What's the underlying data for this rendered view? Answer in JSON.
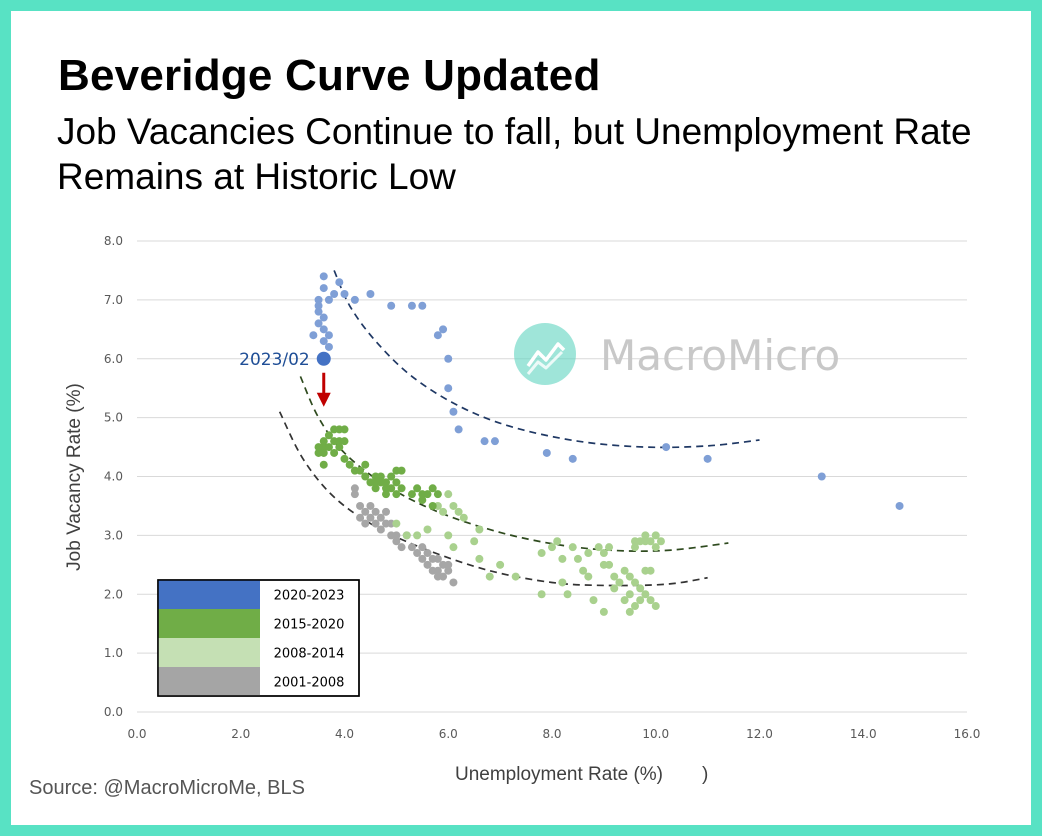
{
  "header": {
    "title": "Beveridge Curve Updated",
    "subtitle": "Job Vacancies Continue to fall, but Unemployment Rate Remains at Historic Low"
  },
  "source": "Source: @MacroMicroMe, BLS",
  "watermark": {
    "text": "MacroMicro",
    "color": "#5fd3c0"
  },
  "colors": {
    "frame": "#58e2c4",
    "grid": "#d9d9d9",
    "arrow": "#c00000",
    "trend": "#1f3864"
  },
  "chart_data": {
    "type": "scatter",
    "xlabel": "Unemployment Rate (%)",
    "xlabel_suffix": ")",
    "ylabel": "Job Vacancy Rate (%)",
    "xlim": [
      0,
      16
    ],
    "ylim": [
      0,
      8
    ],
    "xticks": [
      "0.0",
      "2.0",
      "4.0",
      "6.0",
      "8.0",
      "10.0",
      "12.0",
      "14.0",
      "16.0"
    ],
    "yticks": [
      "0.0",
      "1.0",
      "2.0",
      "3.0",
      "4.0",
      "5.0",
      "6.0",
      "7.0",
      "8.0"
    ],
    "grid": "horizontal",
    "legend_position": "bottom-left",
    "series": [
      {
        "name": "2020-2023",
        "color": "#7f9fd6",
        "points": [
          [
            3.6,
            7.4
          ],
          [
            3.5,
            6.8
          ],
          [
            3.6,
            7.2
          ],
          [
            3.8,
            7.1
          ],
          [
            3.9,
            7.3
          ],
          [
            4.0,
            7.1
          ],
          [
            3.5,
            7.0
          ],
          [
            3.7,
            7.0
          ],
          [
            4.2,
            7.0
          ],
          [
            4.5,
            7.1
          ],
          [
            4.9,
            6.9
          ],
          [
            5.3,
            6.9
          ],
          [
            5.5,
            6.9
          ],
          [
            3.5,
            6.9
          ],
          [
            3.6,
            6.7
          ],
          [
            3.5,
            6.6
          ],
          [
            3.6,
            6.5
          ],
          [
            3.7,
            6.4
          ],
          [
            3.4,
            6.4
          ],
          [
            3.6,
            6.3
          ],
          [
            3.7,
            6.2
          ],
          [
            5.8,
            6.4
          ],
          [
            5.9,
            6.5
          ],
          [
            6.0,
            6.0
          ],
          [
            6.0,
            5.5
          ],
          [
            6.1,
            5.1
          ],
          [
            6.2,
            4.8
          ],
          [
            6.7,
            4.6
          ],
          [
            6.9,
            4.6
          ],
          [
            7.9,
            4.4
          ],
          [
            8.4,
            4.3
          ],
          [
            10.2,
            4.5
          ],
          [
            11.0,
            4.3
          ],
          [
            13.2,
            4.0
          ],
          [
            14.7,
            3.5
          ]
        ]
      },
      {
        "name": "2015-2020",
        "color": "#70ad47",
        "points": [
          [
            3.5,
            4.4
          ],
          [
            3.6,
            4.5
          ],
          [
            3.6,
            4.6
          ],
          [
            3.7,
            4.5
          ],
          [
            3.7,
            4.7
          ],
          [
            3.8,
            4.6
          ],
          [
            3.8,
            4.8
          ],
          [
            3.9,
            4.8
          ],
          [
            3.9,
            4.6
          ],
          [
            4.0,
            4.8
          ],
          [
            4.0,
            4.6
          ],
          [
            3.6,
            4.2
          ],
          [
            3.6,
            4.4
          ],
          [
            3.5,
            4.5
          ],
          [
            3.8,
            4.4
          ],
          [
            3.9,
            4.5
          ],
          [
            4.0,
            4.3
          ],
          [
            4.1,
            4.2
          ],
          [
            4.2,
            4.1
          ],
          [
            4.3,
            4.1
          ],
          [
            4.4,
            4.0
          ],
          [
            4.4,
            4.2
          ],
          [
            4.5,
            3.9
          ],
          [
            4.6,
            4.0
          ],
          [
            4.6,
            3.8
          ],
          [
            4.7,
            4.0
          ],
          [
            4.7,
            3.9
          ],
          [
            4.8,
            3.7
          ],
          [
            4.8,
            3.9
          ],
          [
            4.9,
            3.8
          ],
          [
            4.9,
            4.0
          ],
          [
            5.0,
            3.9
          ],
          [
            5.0,
            4.1
          ],
          [
            5.1,
            3.8
          ],
          [
            5.1,
            4.1
          ],
          [
            5.0,
            3.7
          ],
          [
            4.8,
            3.8
          ],
          [
            4.6,
            3.9
          ],
          [
            5.3,
            3.7
          ],
          [
            5.4,
            3.8
          ],
          [
            5.5,
            3.6
          ],
          [
            5.6,
            3.7
          ],
          [
            5.7,
            3.8
          ],
          [
            5.8,
            3.7
          ],
          [
            5.7,
            3.5
          ],
          [
            5.5,
            3.7
          ]
        ]
      },
      {
        "name": "2008-2014",
        "color": "#a9d18e",
        "points": [
          [
            5.0,
            3.2
          ],
          [
            5.2,
            3.0
          ],
          [
            5.4,
            3.0
          ],
          [
            5.6,
            3.1
          ],
          [
            5.8,
            3.5
          ],
          [
            5.9,
            3.4
          ],
          [
            6.0,
            3.7
          ],
          [
            6.1,
            3.5
          ],
          [
            6.2,
            3.4
          ],
          [
            6.0,
            3.0
          ],
          [
            6.1,
            2.8
          ],
          [
            6.3,
            3.3
          ],
          [
            6.5,
            2.9
          ],
          [
            6.6,
            3.1
          ],
          [
            6.6,
            2.6
          ],
          [
            6.8,
            2.3
          ],
          [
            7.0,
            2.5
          ],
          [
            7.3,
            2.3
          ],
          [
            7.8,
            2.7
          ],
          [
            7.8,
            2.0
          ],
          [
            8.0,
            2.8
          ],
          [
            8.1,
            2.9
          ],
          [
            8.2,
            2.6
          ],
          [
            8.2,
            2.2
          ],
          [
            8.3,
            2.0
          ],
          [
            8.4,
            2.8
          ],
          [
            8.5,
            2.6
          ],
          [
            8.6,
            2.4
          ],
          [
            8.7,
            2.3
          ],
          [
            8.7,
            2.7
          ],
          [
            8.8,
            1.9
          ],
          [
            8.9,
            2.8
          ],
          [
            9.0,
            2.7
          ],
          [
            9.0,
            2.5
          ],
          [
            9.0,
            1.7
          ],
          [
            9.1,
            2.8
          ],
          [
            9.1,
            2.5
          ],
          [
            9.2,
            2.3
          ],
          [
            9.2,
            2.1
          ],
          [
            9.3,
            2.2
          ],
          [
            9.4,
            2.4
          ],
          [
            9.4,
            1.9
          ],
          [
            9.5,
            2.3
          ],
          [
            9.5,
            2.0
          ],
          [
            9.5,
            1.7
          ],
          [
            9.6,
            2.2
          ],
          [
            9.6,
            1.8
          ],
          [
            9.6,
            2.8
          ],
          [
            9.7,
            2.9
          ],
          [
            9.7,
            2.1
          ],
          [
            9.8,
            2.9
          ],
          [
            9.8,
            2.4
          ],
          [
            9.8,
            2.0
          ],
          [
            9.8,
            3.0
          ],
          [
            9.9,
            2.9
          ],
          [
            9.9,
            2.4
          ],
          [
            9.9,
            1.9
          ],
          [
            10.0,
            3.0
          ],
          [
            10.0,
            2.8
          ],
          [
            10.0,
            1.8
          ],
          [
            10.1,
            2.9
          ],
          [
            9.7,
            1.9
          ],
          [
            9.6,
            2.9
          ]
        ]
      },
      {
        "name": "2001-2008",
        "color": "#a6a6a6",
        "points": [
          [
            4.2,
            3.8
          ],
          [
            4.2,
            3.7
          ],
          [
            4.3,
            3.5
          ],
          [
            4.3,
            3.3
          ],
          [
            4.4,
            3.4
          ],
          [
            4.4,
            3.2
          ],
          [
            4.5,
            3.5
          ],
          [
            4.5,
            3.3
          ],
          [
            4.6,
            3.2
          ],
          [
            4.6,
            3.4
          ],
          [
            4.7,
            3.1
          ],
          [
            4.7,
            3.3
          ],
          [
            4.8,
            3.2
          ],
          [
            4.8,
            3.4
          ],
          [
            4.9,
            3.0
          ],
          [
            4.9,
            3.2
          ],
          [
            5.0,
            3.0
          ],
          [
            5.0,
            2.9
          ],
          [
            5.1,
            2.8
          ],
          [
            5.2,
            3.0
          ],
          [
            5.3,
            2.8
          ],
          [
            5.4,
            2.7
          ],
          [
            5.5,
            2.8
          ],
          [
            5.5,
            2.6
          ],
          [
            5.6,
            2.5
          ],
          [
            5.6,
            2.7
          ],
          [
            5.7,
            2.6
          ],
          [
            5.7,
            2.4
          ],
          [
            5.8,
            2.4
          ],
          [
            5.8,
            2.6
          ],
          [
            5.9,
            2.3
          ],
          [
            5.9,
            2.5
          ],
          [
            6.0,
            2.4
          ],
          [
            6.1,
            2.2
          ],
          [
            5.8,
            2.3
          ],
          [
            6.0,
            2.5
          ]
        ]
      }
    ],
    "trendlines": [
      {
        "label": "2020-2023",
        "points": [
          [
            3.8,
            7.5
          ],
          [
            4.1,
            6.9
          ],
          [
            4.6,
            6.3
          ],
          [
            5.3,
            5.7
          ],
          [
            6.2,
            5.2
          ],
          [
            7.2,
            4.85
          ],
          [
            8.5,
            4.6
          ],
          [
            9.8,
            4.5
          ],
          [
            11.0,
            4.52
          ],
          [
            12.0,
            4.62
          ]
        ]
      },
      {
        "label": "2015-2020",
        "points": [
          [
            3.15,
            5.7
          ],
          [
            3.5,
            5.0
          ],
          [
            4.0,
            4.4
          ],
          [
            4.8,
            3.85
          ],
          [
            5.8,
            3.4
          ],
          [
            7.0,
            3.05
          ],
          [
            8.2,
            2.83
          ],
          [
            9.3,
            2.74
          ],
          [
            10.3,
            2.75
          ],
          [
            11.4,
            2.87
          ]
        ]
      },
      {
        "label": "2001-2008",
        "points": [
          [
            2.75,
            5.1
          ],
          [
            3.2,
            4.3
          ],
          [
            3.8,
            3.65
          ],
          [
            4.6,
            3.15
          ],
          [
            5.6,
            2.75
          ],
          [
            6.8,
            2.4
          ],
          [
            8.0,
            2.2
          ],
          [
            9.0,
            2.15
          ],
          [
            10.2,
            2.17
          ],
          [
            11.0,
            2.28
          ]
        ]
      }
    ],
    "annotation": {
      "label": "2023/02",
      "x": 3.6,
      "y": 6.0,
      "color": "#4472c4"
    }
  }
}
